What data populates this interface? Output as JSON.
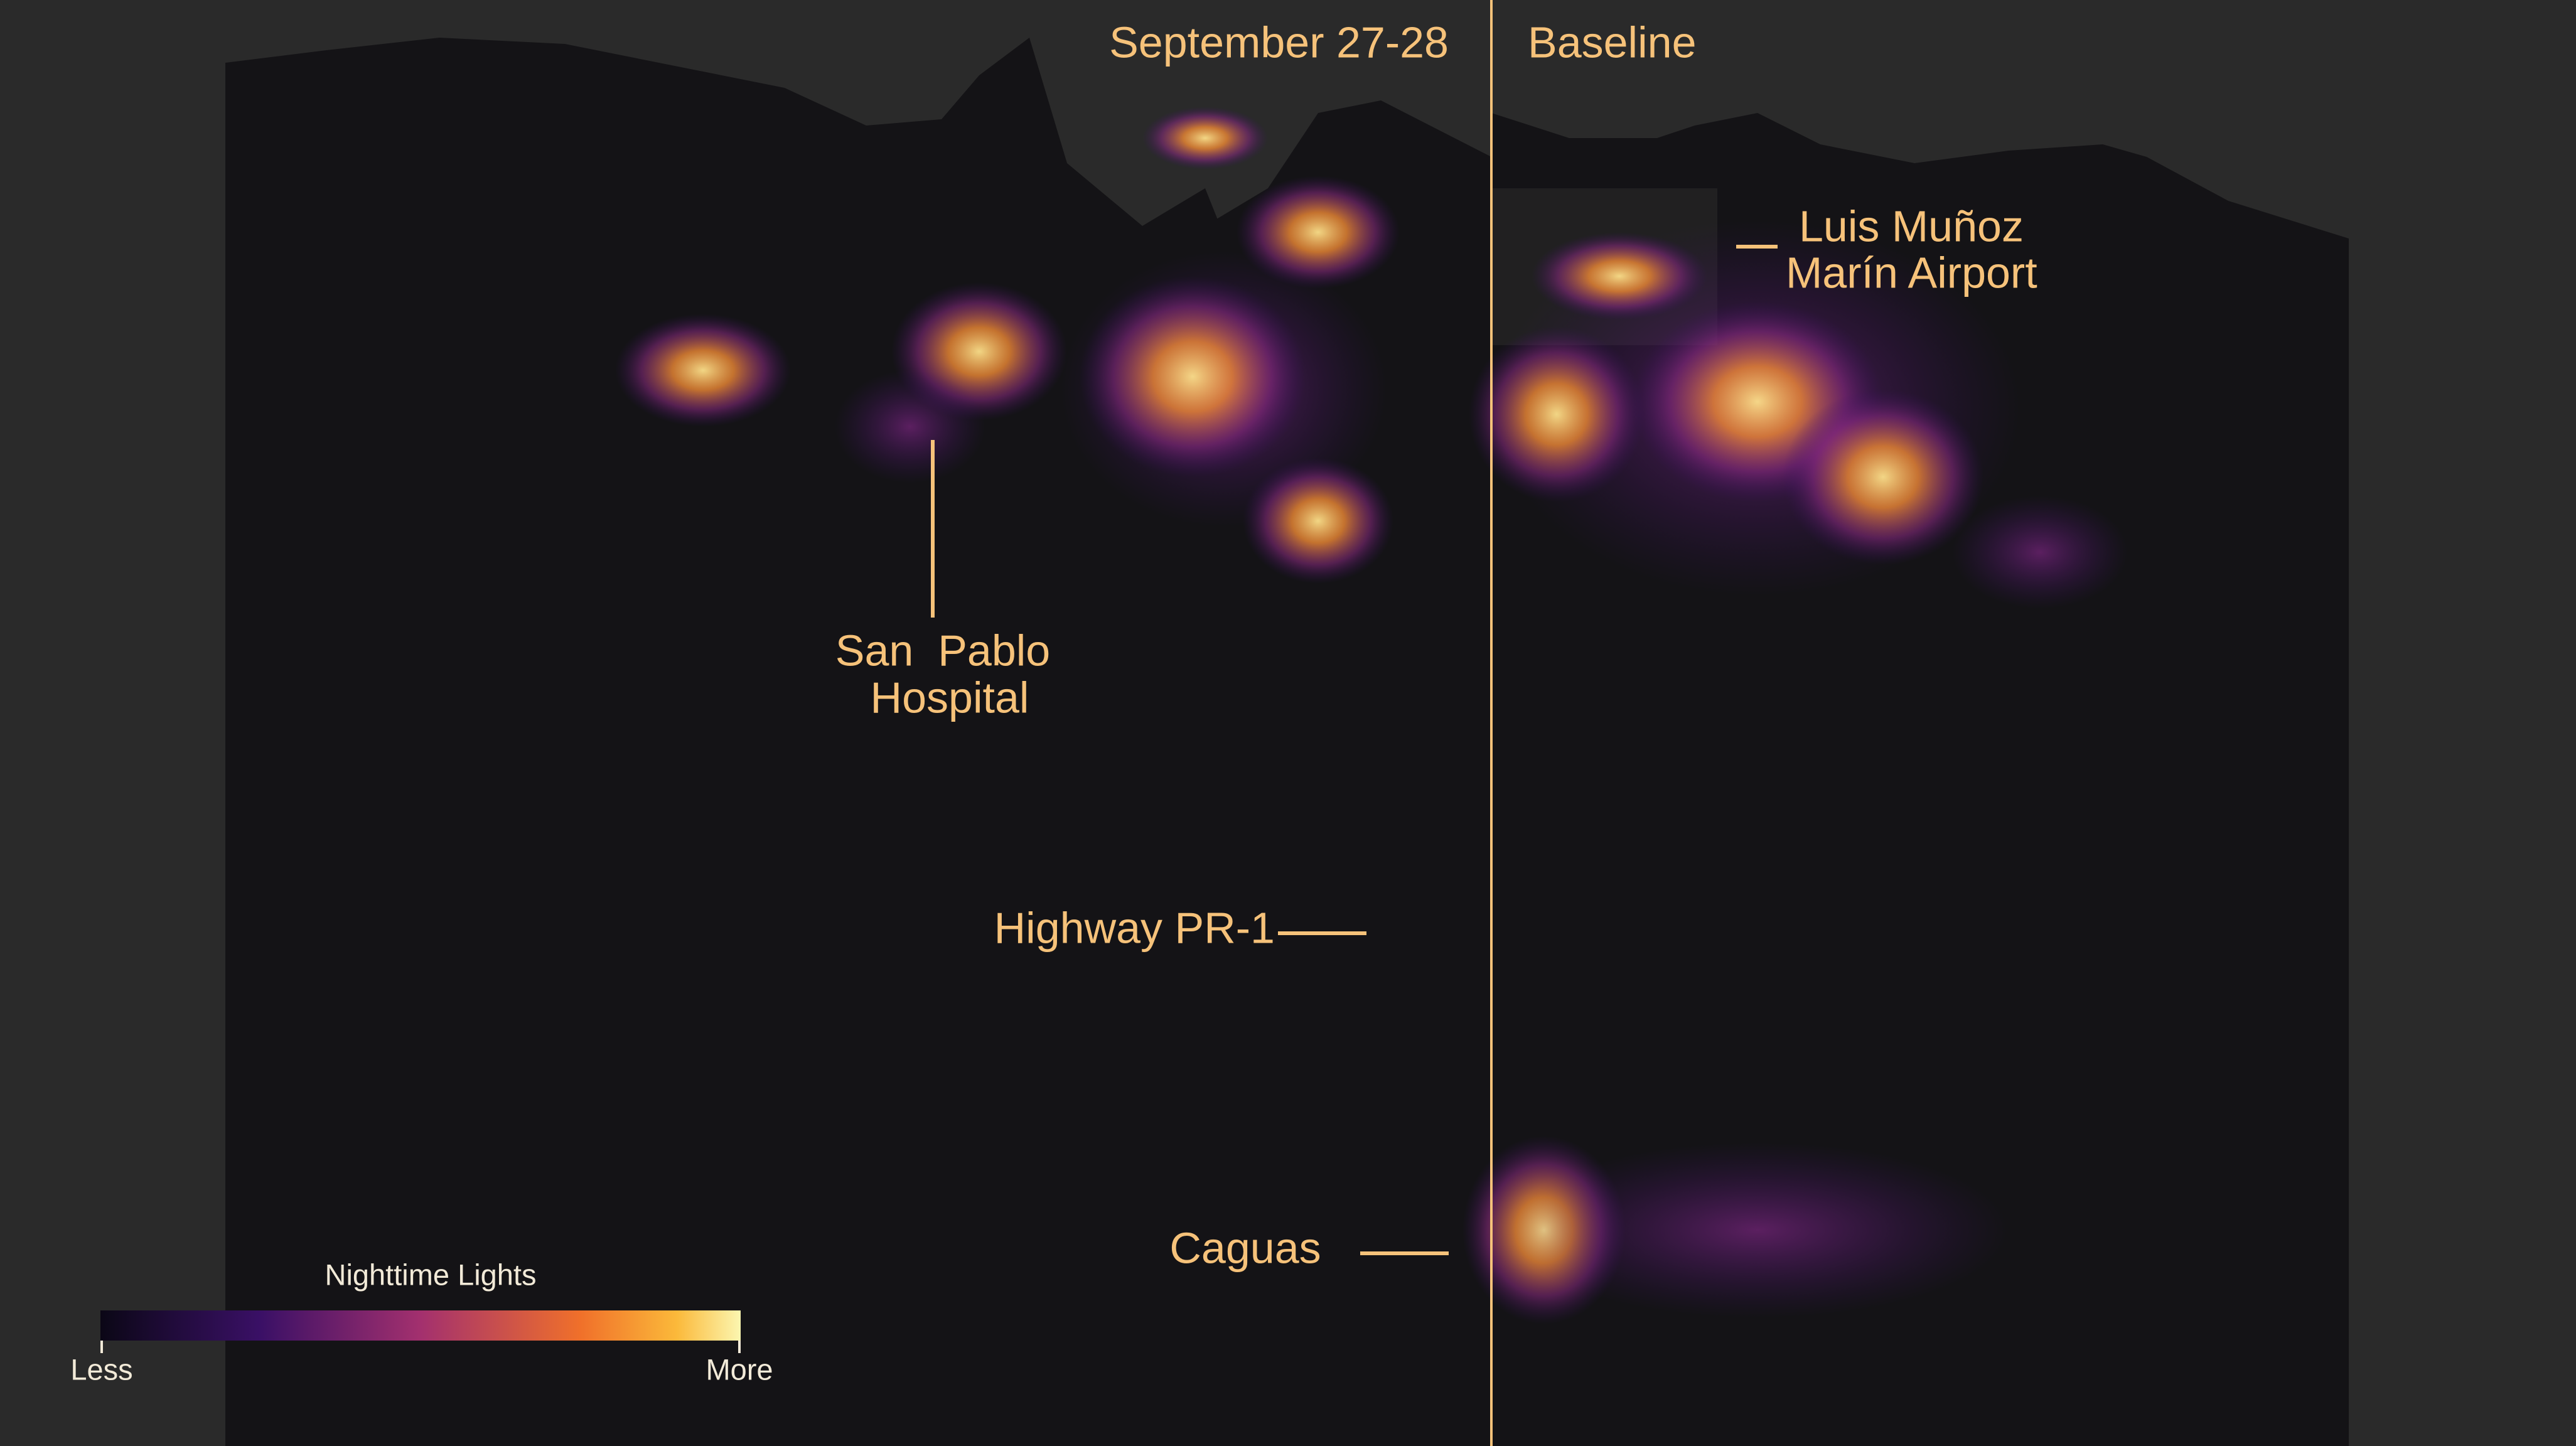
{
  "panels": {
    "left_label": "September 27-28",
    "right_label": "Baseline"
  },
  "annotations": {
    "airport": [
      "Luis Muñoz",
      "Marín Airport"
    ],
    "hospital": [
      "San  Pablo",
      "Hospital"
    ],
    "highway": "Highway PR-1",
    "caguas": "Caguas"
  },
  "legend": {
    "title": "Nighttime Lights",
    "min_label": "Less",
    "max_label": "More"
  }
}
